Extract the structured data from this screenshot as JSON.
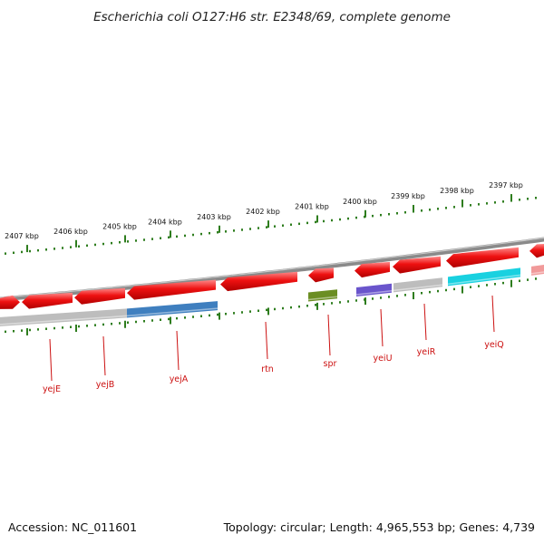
{
  "title": "Escherichia coli O127:H6 str. E2348/69, complete genome",
  "footer": {
    "accession": "Accession: NC_011601",
    "summary": "Topology: circular; Length: 4,965,553 bp; Genes: 4,739"
  },
  "scale_ticks": [
    {
      "label": "2407 kbp"
    },
    {
      "label": "2406 kbp"
    },
    {
      "label": "2405 kbp"
    },
    {
      "label": "2404 kbp"
    },
    {
      "label": "2403 kbp"
    },
    {
      "label": "2402 kbp"
    },
    {
      "label": "2401 kbp"
    },
    {
      "label": "2400 kbp"
    },
    {
      "label": "2399 kbp"
    },
    {
      "label": "2398 kbp"
    },
    {
      "label": "2397 kbp"
    }
  ],
  "gene_labels": [
    {
      "name": "yejE"
    },
    {
      "name": "yejB"
    },
    {
      "name": "yejA"
    },
    {
      "name": "rtn"
    },
    {
      "name": "spr"
    },
    {
      "name": "yeiU"
    },
    {
      "name": "yeiR"
    },
    {
      "name": "yeiQ"
    }
  ],
  "colors": {
    "forward_gene": "#ee1111",
    "tick": "#2e7d1e",
    "label": "#cc1111",
    "backbone": "#8a8a8a",
    "yejA_bar": "#3f7fbf",
    "spr_bar": "#6b8e23",
    "yeiU_bar": "#6a55cc",
    "yeiQ_bar": "#19d1e0",
    "grey_bar": "#bdbdbd"
  }
}
